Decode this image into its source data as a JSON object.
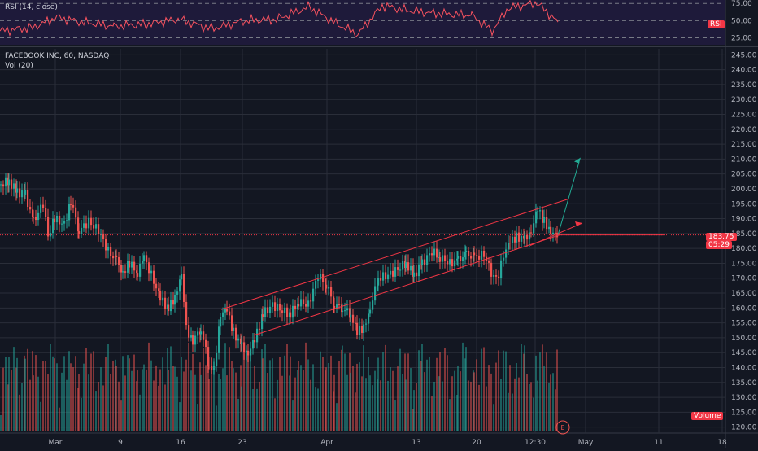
{
  "chart_data": {
    "type": "candlestick",
    "symbol_legend": "FACEBOOK INC, 60, NASDAQ",
    "volume_legend": "Vol (20)",
    "rsi_legend": "RSI (14, close)",
    "rsi_badge": "RSI",
    "volume_badge": "Volume",
    "price_label": "183.75",
    "countdown_label": "05:29",
    "earnings_marker": "E",
    "colors": {
      "background": "#131722",
      "up": "#26a69a",
      "down": "#ef5350",
      "rsi": "#f7525f",
      "trendline": "#f23645",
      "arrow": "#22ab94",
      "grid": "#2a2e39",
      "axis_text": "#b2b5be"
    },
    "y_axis": {
      "ticks": [
        "245.00",
        "240.00",
        "235.00",
        "230.00",
        "225.00",
        "220.00",
        "215.00",
        "210.00",
        "205.00",
        "200.00",
        "195.00",
        "190.00",
        "185.00",
        "180.00",
        "175.00",
        "170.00",
        "165.00",
        "160.00",
        "155.00",
        "150.00",
        "145.00",
        "140.00",
        "135.00",
        "130.00",
        "125.00",
        "120.00"
      ],
      "ylim": [
        118,
        247
      ]
    },
    "rsi_axis": {
      "ticks": [
        "75.00",
        "50.00",
        "25.00"
      ],
      "ylim": [
        15,
        80
      ]
    },
    "x_axis": {
      "ticks": [
        "Mar",
        "9",
        "16",
        "23",
        "Apr",
        "13",
        "20",
        "12:30",
        "May",
        "11",
        "18"
      ]
    },
    "ohlc_close_path": [
      {
        "x": 0,
        "close": 201.5
      },
      {
        "x": 10,
        "close": 202.5
      },
      {
        "x": 20,
        "close": 199
      },
      {
        "x": 30,
        "close": 198
      },
      {
        "x": 40,
        "close": 189
      },
      {
        "x": 52,
        "close": 195
      },
      {
        "x": 58,
        "close": 184
      },
      {
        "x": 66,
        "close": 190
      },
      {
        "x": 78,
        "close": 188
      },
      {
        "x": 86,
        "close": 196
      },
      {
        "x": 96,
        "close": 186
      },
      {
        "x": 108,
        "close": 189
      },
      {
        "x": 120,
        "close": 186
      },
      {
        "x": 132,
        "close": 179
      },
      {
        "x": 142,
        "close": 176
      },
      {
        "x": 150,
        "close": 172
      },
      {
        "x": 158,
        "close": 175
      },
      {
        "x": 168,
        "close": 172
      },
      {
        "x": 176,
        "close": 177
      },
      {
        "x": 188,
        "close": 169
      },
      {
        "x": 196,
        "close": 163
      },
      {
        "x": 206,
        "close": 160
      },
      {
        "x": 214,
        "close": 163
      },
      {
        "x": 222,
        "close": 172
      },
      {
        "x": 228,
        "close": 153
      },
      {
        "x": 236,
        "close": 149
      },
      {
        "x": 246,
        "close": 153
      },
      {
        "x": 256,
        "close": 141
      },
      {
        "x": 262,
        "close": 139
      },
      {
        "x": 270,
        "close": 158
      },
      {
        "x": 278,
        "close": 159
      },
      {
        "x": 286,
        "close": 152
      },
      {
        "x": 296,
        "close": 147
      },
      {
        "x": 304,
        "close": 145
      },
      {
        "x": 312,
        "close": 149
      },
      {
        "x": 322,
        "close": 158
      },
      {
        "x": 334,
        "close": 161
      },
      {
        "x": 346,
        "close": 159
      },
      {
        "x": 356,
        "close": 158
      },
      {
        "x": 366,
        "close": 162
      },
      {
        "x": 378,
        "close": 161
      },
      {
        "x": 390,
        "close": 171
      },
      {
        "x": 400,
        "close": 168
      },
      {
        "x": 410,
        "close": 161
      },
      {
        "x": 420,
        "close": 160
      },
      {
        "x": 430,
        "close": 158
      },
      {
        "x": 438,
        "close": 152
      },
      {
        "x": 446,
        "close": 153
      },
      {
        "x": 454,
        "close": 160
      },
      {
        "x": 464,
        "close": 170
      },
      {
        "x": 476,
        "close": 171
      },
      {
        "x": 488,
        "close": 173
      },
      {
        "x": 498,
        "close": 175
      },
      {
        "x": 508,
        "close": 171
      },
      {
        "x": 518,
        "close": 175
      },
      {
        "x": 530,
        "close": 179
      },
      {
        "x": 540,
        "close": 177
      },
      {
        "x": 552,
        "close": 175
      },
      {
        "x": 562,
        "close": 176
      },
      {
        "x": 572,
        "close": 178
      },
      {
        "x": 582,
        "close": 177
      },
      {
        "x": 594,
        "close": 178
      },
      {
        "x": 600,
        "close": 174
      },
      {
        "x": 606,
        "close": 170
      },
      {
        "x": 612,
        "close": 171
      },
      {
        "x": 618,
        "close": 178
      },
      {
        "x": 626,
        "close": 182
      },
      {
        "x": 634,
        "close": 184
      },
      {
        "x": 644,
        "close": 183
      },
      {
        "x": 652,
        "close": 186
      },
      {
        "x": 660,
        "close": 193
      },
      {
        "x": 668,
        "close": 189
      },
      {
        "x": 676,
        "close": 186
      },
      {
        "x": 684,
        "close": 183.75
      }
    ],
    "rsi_path": [
      {
        "x": 0,
        "rsi": 35
      },
      {
        "x": 40,
        "rsi": 40
      },
      {
        "x": 70,
        "rsi": 55
      },
      {
        "x": 100,
        "rsi": 48
      },
      {
        "x": 140,
        "rsi": 42
      },
      {
        "x": 180,
        "rsi": 45
      },
      {
        "x": 220,
        "rsi": 52
      },
      {
        "x": 260,
        "rsi": 38
      },
      {
        "x": 300,
        "rsi": 50
      },
      {
        "x": 340,
        "rsi": 52
      },
      {
        "x": 380,
        "rsi": 70
      },
      {
        "x": 410,
        "rsi": 48
      },
      {
        "x": 440,
        "rsi": 30
      },
      {
        "x": 470,
        "rsi": 72
      },
      {
        "x": 500,
        "rsi": 65
      },
      {
        "x": 540,
        "rsi": 60
      },
      {
        "x": 580,
        "rsi": 58
      },
      {
        "x": 605,
        "rsi": 35
      },
      {
        "x": 625,
        "rsi": 68
      },
      {
        "x": 660,
        "rsi": 76
      },
      {
        "x": 686,
        "rsi": 48
      }
    ]
  }
}
